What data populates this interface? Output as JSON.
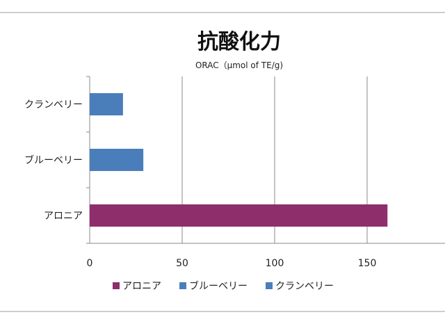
{
  "chart_data": {
    "type": "bar",
    "orientation": "horizontal",
    "title": "抗酸化力",
    "subtitle": "ORAC（µmol of TE/g)",
    "categories": [
      "クランベリー",
      "ブルーベリー",
      "アロニア"
    ],
    "values": [
      18,
      29,
      161
    ],
    "colors": [
      "#4a7ebb",
      "#4a7ebb",
      "#8e2e6b"
    ],
    "xlim": [
      0,
      200
    ],
    "xticks": [
      0,
      50,
      100,
      150
    ],
    "grid": true,
    "legend_position": "bottom",
    "legend": [
      {
        "label": "アロニア",
        "color": "#8e2e6b"
      },
      {
        "label": "ブルーベリー",
        "color": "#4a7ebb"
      },
      {
        "label": "クランベリー",
        "color": "#4a7ebb"
      }
    ]
  }
}
